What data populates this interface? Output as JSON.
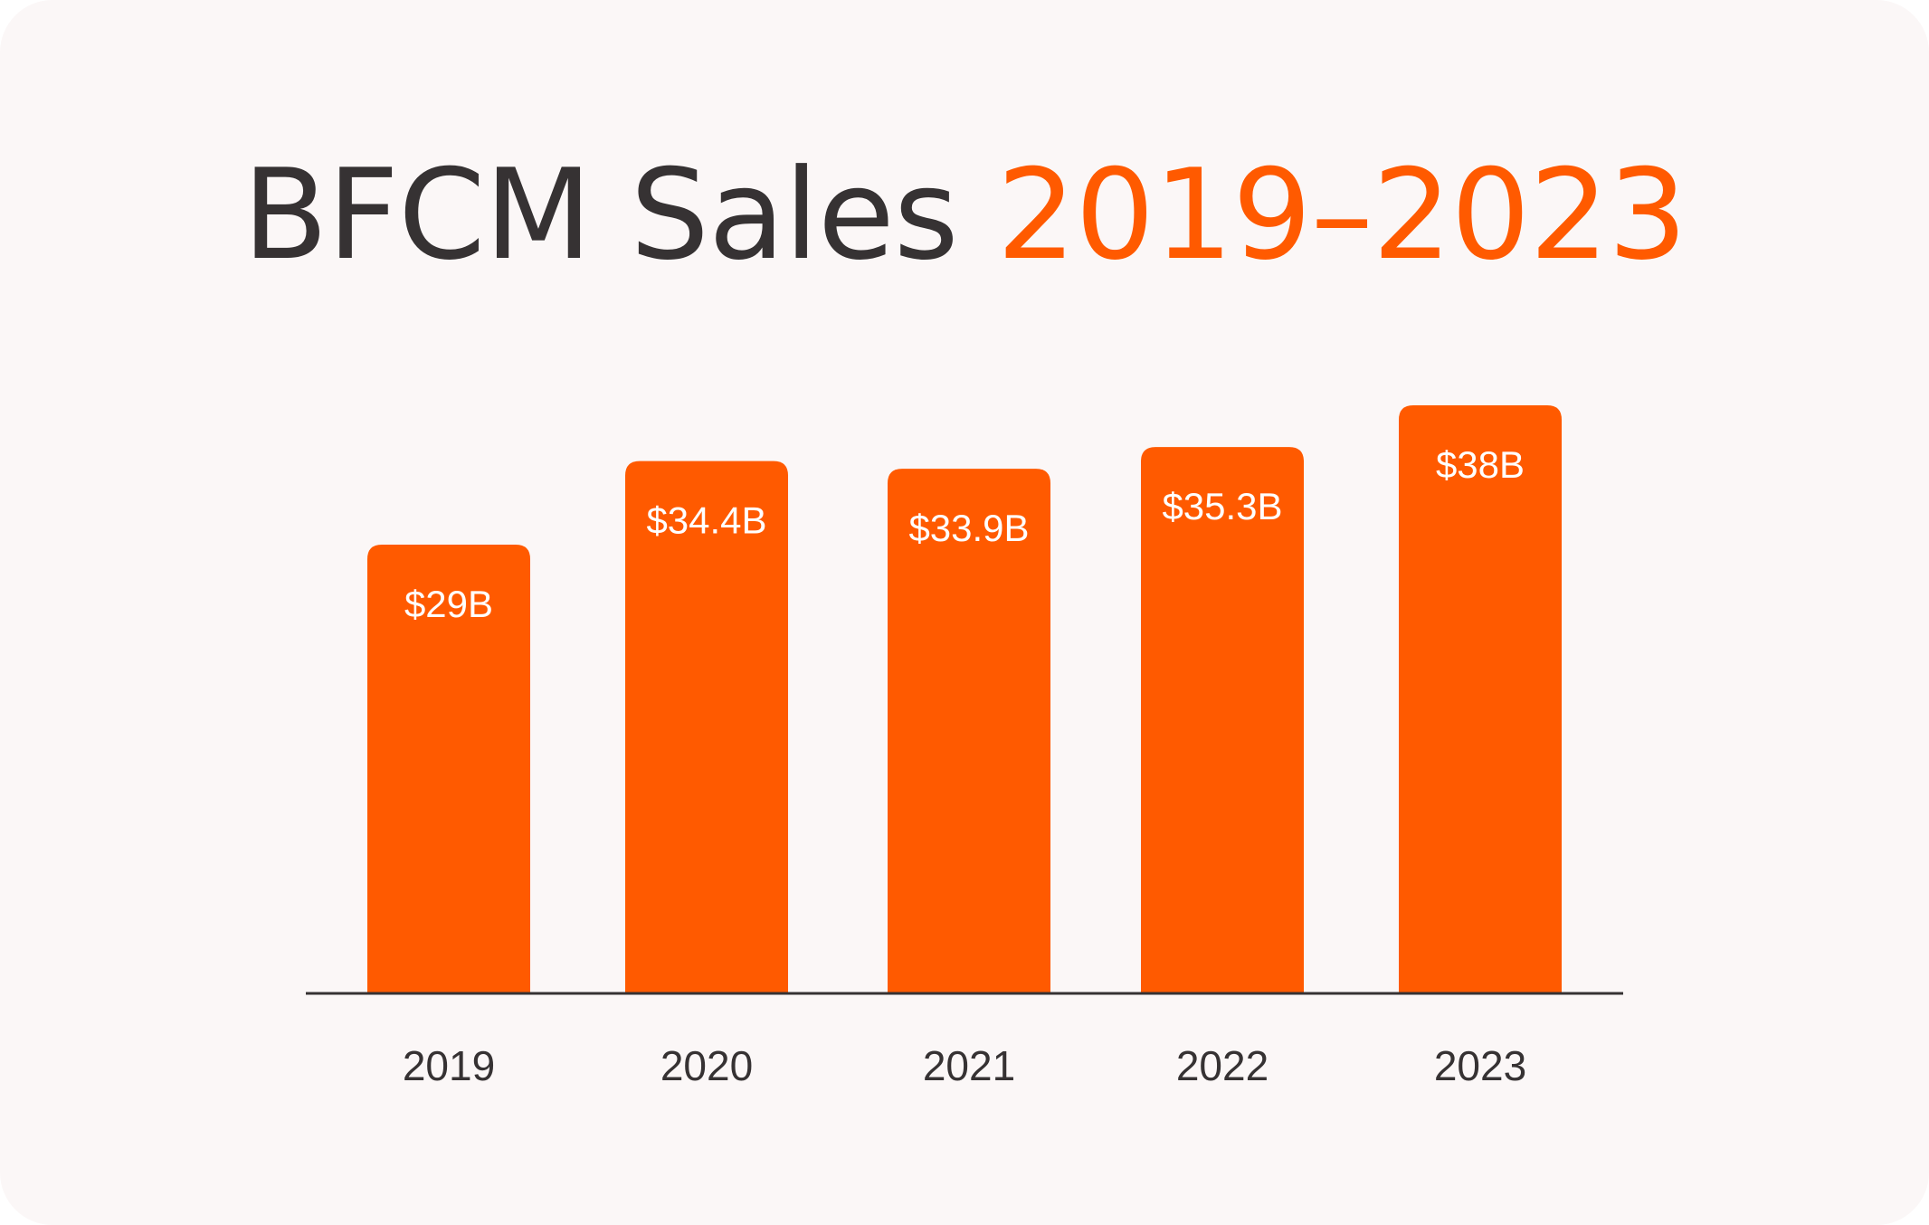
{
  "title": {
    "prefix": "BFCM Sales",
    "suffix": "2019–2023"
  },
  "colors": {
    "background": "#fbf7f7",
    "bar": "#ff5a00",
    "title_dark": "#363233",
    "title_accent": "#ff5a00",
    "bar_label": "#ffffff",
    "axis_label": "#363233",
    "axis_line": "#363233"
  },
  "chart_data": {
    "type": "bar",
    "title": "BFCM Sales 2019–2023",
    "xlabel": "",
    "ylabel": "",
    "categories": [
      "2019",
      "2020",
      "2021",
      "2022",
      "2023"
    ],
    "values": [
      29,
      34.4,
      33.9,
      35.3,
      38
    ],
    "data_labels": [
      "$29B",
      "$34.4B",
      "$33.9B",
      "$35.3B",
      "$38B"
    ],
    "unit": "B USD",
    "ylim": [
      0,
      38
    ],
    "grid": false,
    "legend": "none"
  }
}
